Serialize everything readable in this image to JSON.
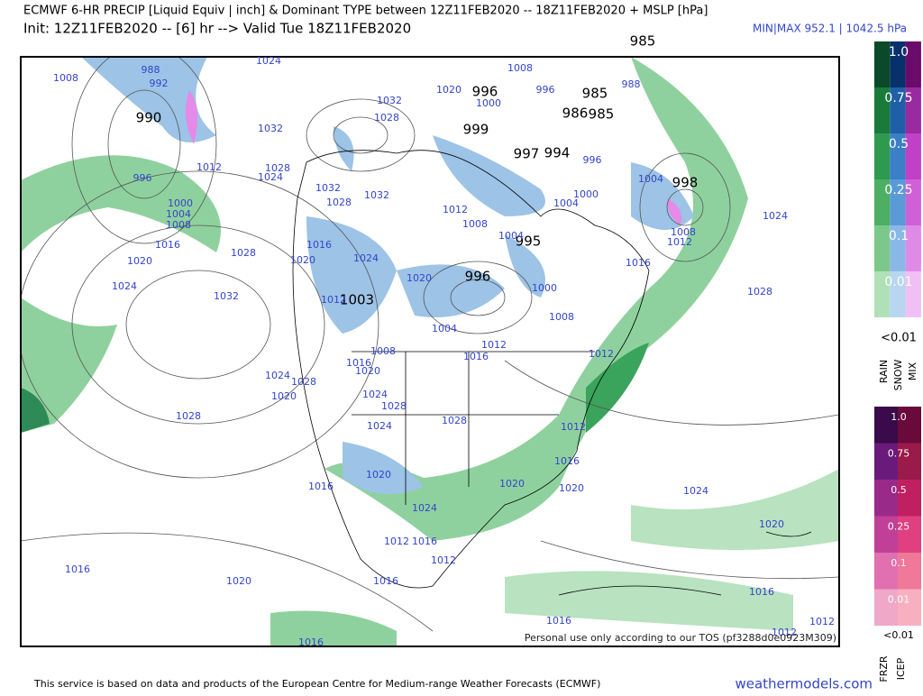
{
  "header": {
    "title": "ECMWF 6-HR PRECIP [Liquid Equiv | inch] & Dominant TYPE between 12Z11FEB2020 -- 18Z11FEB2020 + MSLP [hPa]",
    "subtitle": "Init: 12Z11FEB2020 -- [6] hr --> Valid Tue 18Z11FEB2020",
    "minmax": "MIN|MAX 952.1 | 1042.5 hPa"
  },
  "map": {
    "low_labels": [
      "985",
      "990",
      "996",
      "985",
      "986",
      "985",
      "999",
      "997",
      "994",
      "998",
      "995",
      "996",
      "1003"
    ],
    "pressure_labels": [
      "1008",
      "988",
      "992",
      "1024",
      "1032",
      "1028",
      "1032",
      "1020",
      "1000",
      "996",
      "1008",
      "988",
      "1012",
      "996",
      "1000",
      "1004",
      "1008",
      "1016",
      "1020",
      "1024",
      "1028",
      "1032",
      "1028",
      "1024",
      "1032",
      "1028",
      "1032",
      "1012",
      "1008",
      "1004",
      "1004",
      "1000",
      "1004",
      "996",
      "1024",
      "1016",
      "1020",
      "1024",
      "1020",
      "1012",
      "1000",
      "1008",
      "1008",
      "1012",
      "1016",
      "1028",
      "1004",
      "1012",
      "1016",
      "1012",
      "1008",
      "1016",
      "1020",
      "1024",
      "1020",
      "1028",
      "1024",
      "1028",
      "1024",
      "1028",
      "1028",
      "1012",
      "1016",
      "1020",
      "1016",
      "1020",
      "1020",
      "1024",
      "1024",
      "1020",
      "1012",
      "1016",
      "1012",
      "1016",
      "1020",
      "1016",
      "1016",
      "1016",
      "1012",
      "1012",
      "1016"
    ],
    "watermark": "Personal use only according to our TOS (pf3288d0e0923M309)"
  },
  "legend": {
    "rain_snow_mix": {
      "levels": [
        "1.0",
        "0.75",
        "0.5",
        "0.25",
        "0.1",
        "0.01"
      ],
      "min": "<0.01",
      "types": [
        "RAIN",
        "SNOW",
        "MIX"
      ]
    },
    "frzr_icep": {
      "levels": [
        "1.0",
        "0.75",
        "0.5",
        "0.25",
        "0.1",
        "0.01"
      ],
      "min": "<0.01",
      "types": [
        "FRZR",
        "ICEP"
      ]
    }
  },
  "footer": {
    "credit": "This service is based on data and products of the European Centre for Medium-range Weather Forecasts (ECMWF)",
    "site": "weathermodels.com"
  }
}
